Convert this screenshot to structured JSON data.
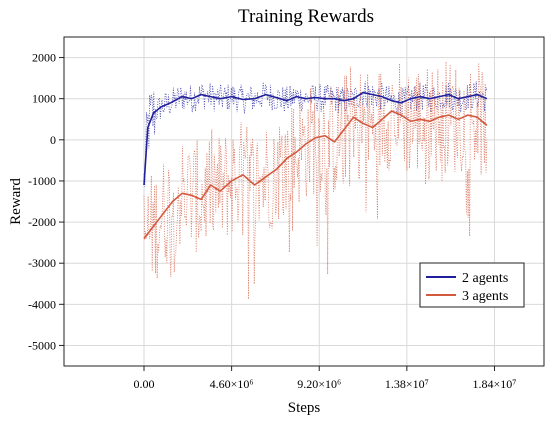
{
  "chart_data": {
    "type": "line",
    "title": "Training Rewards",
    "xlabel": "Steps",
    "ylabel": "Reward",
    "xlim": [
      -4200000,
      21000000
    ],
    "ylim": [
      -5500,
      2500
    ],
    "x_ticks": [
      0,
      4600000,
      9200000,
      13800000,
      18400000
    ],
    "x_tick_labels": [
      "0.00",
      "4.60×10⁶",
      "9.20×10⁶",
      "1.38×10⁷",
      "1.84×10⁷"
    ],
    "y_ticks": [
      -5000,
      -4000,
      -3000,
      -2000,
      -1000,
      0,
      1000,
      2000
    ],
    "y_tick_labels": [
      "-5000",
      "-4000",
      "-3000",
      "-2000",
      "-1000",
      "0",
      "1000",
      "2000"
    ],
    "grid": true,
    "legend_position": "lower-right",
    "series": [
      {
        "name": "2 agents",
        "color": "#1f1f9c",
        "x": [
          0,
          200000,
          500000,
          900000,
          1400000,
          2000000,
          2500000,
          3000000,
          3500000,
          4000000,
          4600000,
          5200000,
          5800000,
          6400000,
          7000000,
          7500000,
          8000000,
          8500000,
          9000000,
          9500000,
          10000000,
          10500000,
          11000000,
          11500000,
          12000000,
          12500000,
          13000000,
          13500000,
          14000000,
          14500000,
          15000000,
          15500000,
          16000000,
          16500000,
          17000000,
          17500000,
          18000000
        ],
        "values": [
          -1100,
          300,
          650,
          800,
          900,
          1050,
          1000,
          1100,
          1050,
          1000,
          1050,
          980,
          1000,
          1100,
          1020,
          950,
          1050,
          1000,
          1030,
          1000,
          1000,
          950,
          1000,
          1150,
          1100,
          1050,
          950,
          900,
          1000,
          1050,
          1000,
          1050,
          1100,
          1000,
          1050,
          1100,
          1000
        ]
      },
      {
        "name": "3 agents",
        "color": "#d35a3f",
        "x": [
          0,
          500000,
          1000000,
          1500000,
          2000000,
          2500000,
          3000000,
          3500000,
          4000000,
          4600000,
          5200000,
          5800000,
          6400000,
          7000000,
          7500000,
          8000000,
          8500000,
          9000000,
          9500000,
          10000000,
          10500000,
          11000000,
          11500000,
          12000000,
          12500000,
          13000000,
          13500000,
          14000000,
          14500000,
          15000000,
          15500000,
          16000000,
          16500000,
          17000000,
          17500000,
          18000000
        ],
        "values": [
          -2400,
          -2100,
          -1800,
          -1500,
          -1300,
          -1350,
          -1450,
          -1100,
          -1250,
          -1000,
          -850,
          -1100,
          -900,
          -700,
          -450,
          -300,
          -100,
          50,
          100,
          -50,
          250,
          550,
          400,
          300,
          500,
          700,
          600,
          450,
          500,
          450,
          550,
          600,
          500,
          600,
          550,
          350
        ]
      }
    ]
  }
}
